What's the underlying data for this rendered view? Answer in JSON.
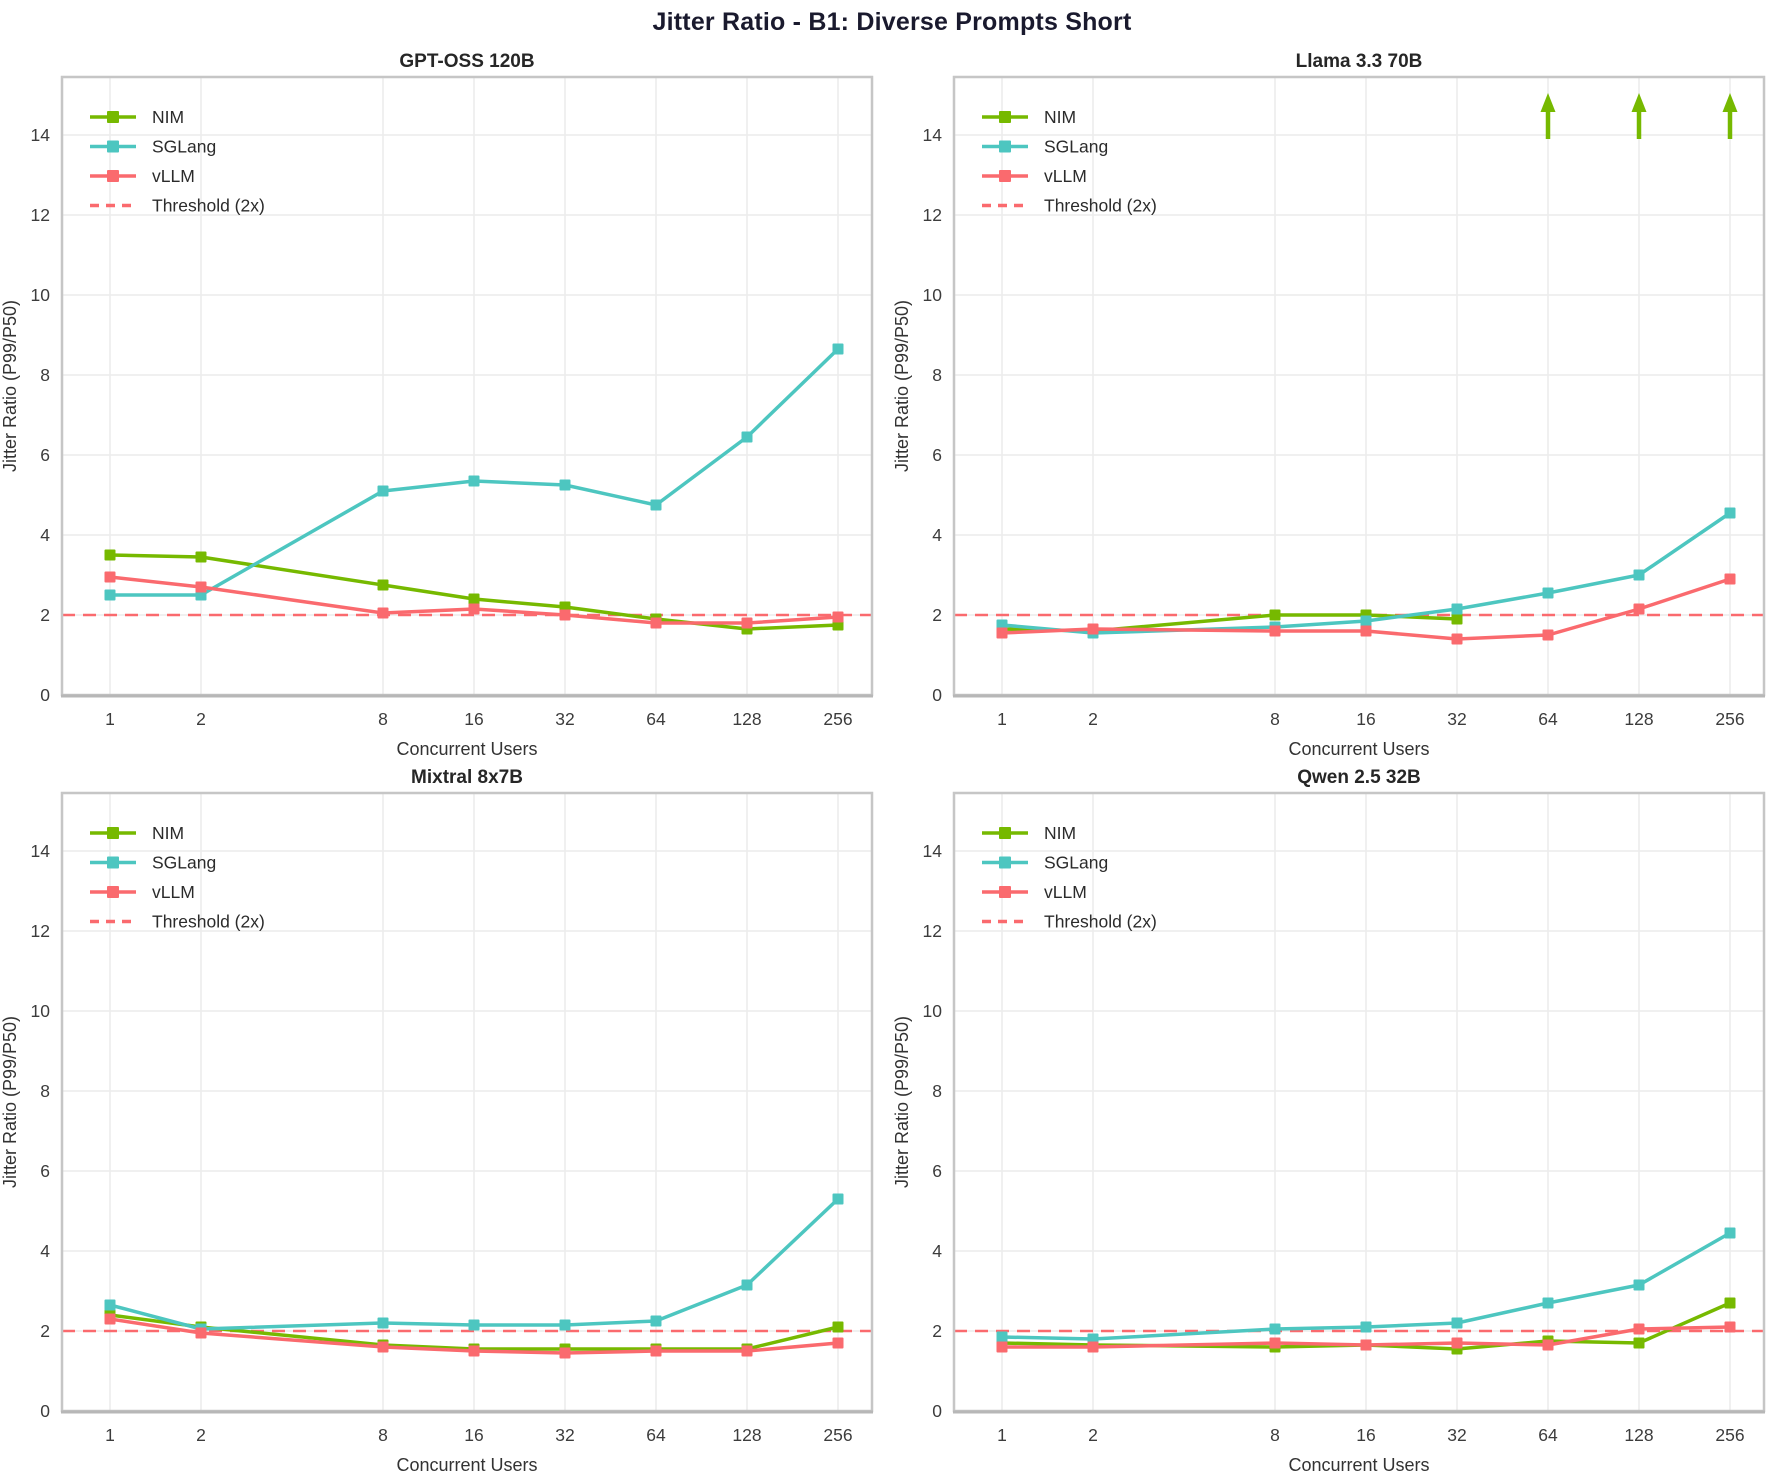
{
  "figure": {
    "title": "Jitter Ratio - B1: Diverse Prompts Short",
    "shared_xlabel": "Concurrent Users",
    "shared_ylabel": "Jitter Ratio (P99/P50)",
    "legend_entries": [
      "NIM",
      "SGLang",
      "vLLM",
      "Threshold (2x)"
    ],
    "colors": {
      "nim_green": "#76b900",
      "sglang_teal": "#4dc6c0",
      "vllm_salmon": "#fa6a6e",
      "threshold_salmon": "#fa6a6e",
      "grid_gray": "#ececec",
      "spine_gray": "#c6c6c6",
      "tick_text": "#3c3c3c",
      "title_text": "#1a1a2e",
      "subtitle_text": "#262626"
    }
  },
  "chart_data": [
    {
      "type": "line",
      "title": "GPT-OSS 120B",
      "xscale": "log2",
      "x": [
        1,
        2,
        8,
        16,
        32,
        64,
        128,
        256
      ],
      "xticklabels": [
        "1",
        "2",
        "8",
        "16",
        "32",
        "64",
        "128",
        "256"
      ],
      "yticks": [
        0,
        2,
        4,
        6,
        8,
        10,
        12,
        14
      ],
      "ylim": [
        0,
        15.45
      ],
      "grid": true,
      "legend_position": "upper left",
      "xlabel": "Concurrent Users",
      "ylabel": "Jitter Ratio (P99/P50)",
      "series": [
        {
          "name": "NIM",
          "color": "#76b900",
          "values": [
            3.5,
            3.45,
            2.75,
            2.4,
            2.2,
            1.9,
            1.65,
            1.75
          ]
        },
        {
          "name": "SGLang",
          "color": "#4dc6c0",
          "values": [
            2.5,
            2.5,
            5.1,
            5.35,
            5.25,
            4.75,
            6.45,
            8.65
          ]
        },
        {
          "name": "vLLM",
          "color": "#fa6a6e",
          "values": [
            2.95,
            2.7,
            2.05,
            2.15,
            2.0,
            1.8,
            1.8,
            1.95
          ]
        }
      ],
      "threshold": {
        "label": "Threshold (2x)",
        "value": 2,
        "color": "#fa6a6e",
        "style": "dashed"
      }
    },
    {
      "type": "line",
      "title": "Llama 3.3 70B",
      "xscale": "log2",
      "x": [
        1,
        2,
        8,
        16,
        32,
        64,
        128,
        256
      ],
      "xticklabels": [
        "1",
        "2",
        "8",
        "16",
        "32",
        "64",
        "128",
        "256"
      ],
      "yticks": [
        0,
        2,
        4,
        6,
        8,
        10,
        12,
        14
      ],
      "ylim": [
        0,
        15.45
      ],
      "grid": true,
      "legend_position": "upper left",
      "xlabel": "Concurrent Users",
      "ylabel": "Jitter Ratio (P99/P50)",
      "series": [
        {
          "name": "NIM",
          "color": "#76b900",
          "values": [
            1.65,
            1.6,
            2.0,
            2.0,
            1.9,
            null,
            null,
            null
          ]
        },
        {
          "name": "SGLang",
          "color": "#4dc6c0",
          "values": [
            1.75,
            1.55,
            1.7,
            1.85,
            2.15,
            2.55,
            3.0,
            4.55
          ]
        },
        {
          "name": "vLLM",
          "color": "#fa6a6e",
          "values": [
            1.55,
            1.65,
            1.6,
            1.6,
            1.4,
            1.5,
            2.15,
            2.9
          ]
        }
      ],
      "threshold": {
        "label": "Threshold (2x)",
        "value": 2,
        "color": "#fa6a6e",
        "style": "dashed"
      },
      "overflow_arrows": {
        "series": "NIM",
        "color": "#76b900",
        "x": [
          64,
          128,
          256
        ]
      }
    },
    {
      "type": "line",
      "title": "Mixtral 8x7B",
      "xscale": "log2",
      "x": [
        1,
        2,
        8,
        16,
        32,
        64,
        128,
        256
      ],
      "xticklabels": [
        "1",
        "2",
        "8",
        "16",
        "32",
        "64",
        "128",
        "256"
      ],
      "yticks": [
        0,
        2,
        4,
        6,
        8,
        10,
        12,
        14
      ],
      "ylim": [
        0,
        15.45
      ],
      "grid": true,
      "legend_position": "upper left",
      "xlabel": "Concurrent Users",
      "ylabel": "Jitter Ratio (P99/P50)",
      "series": [
        {
          "name": "NIM",
          "color": "#76b900",
          "values": [
            2.4,
            2.1,
            1.65,
            1.55,
            1.55,
            1.55,
            1.55,
            2.1
          ]
        },
        {
          "name": "SGLang",
          "color": "#4dc6c0",
          "values": [
            2.65,
            2.05,
            2.2,
            2.15,
            2.15,
            2.25,
            3.15,
            5.3
          ]
        },
        {
          "name": "vLLM",
          "color": "#fa6a6e",
          "values": [
            2.3,
            1.95,
            1.6,
            1.5,
            1.45,
            1.5,
            1.5,
            1.7
          ]
        }
      ],
      "threshold": {
        "label": "Threshold (2x)",
        "value": 2,
        "color": "#fa6a6e",
        "style": "dashed"
      }
    },
    {
      "type": "line",
      "title": "Qwen 2.5 32B",
      "xscale": "log2",
      "x": [
        1,
        2,
        8,
        16,
        32,
        64,
        128,
        256
      ],
      "xticklabels": [
        "1",
        "2",
        "8",
        "16",
        "32",
        "64",
        "128",
        "256"
      ],
      "yticks": [
        0,
        2,
        4,
        6,
        8,
        10,
        12,
        14
      ],
      "ylim": [
        0,
        15.45
      ],
      "grid": true,
      "legend_position": "upper left",
      "xlabel": "Concurrent Users",
      "ylabel": "Jitter Ratio (P99/P50)",
      "series": [
        {
          "name": "NIM",
          "color": "#76b900",
          "values": [
            1.7,
            1.65,
            1.6,
            1.65,
            1.55,
            1.75,
            1.7,
            2.7
          ]
        },
        {
          "name": "SGLang",
          "color": "#4dc6c0",
          "values": [
            1.85,
            1.8,
            2.05,
            2.1,
            2.2,
            2.7,
            3.15,
            4.45
          ]
        },
        {
          "name": "vLLM",
          "color": "#fa6a6e",
          "values": [
            1.6,
            1.6,
            1.7,
            1.65,
            1.7,
            1.65,
            2.05,
            2.1
          ]
        }
      ],
      "threshold": {
        "label": "Threshold (2x)",
        "value": 2,
        "color": "#fa6a6e",
        "style": "dashed"
      }
    }
  ]
}
